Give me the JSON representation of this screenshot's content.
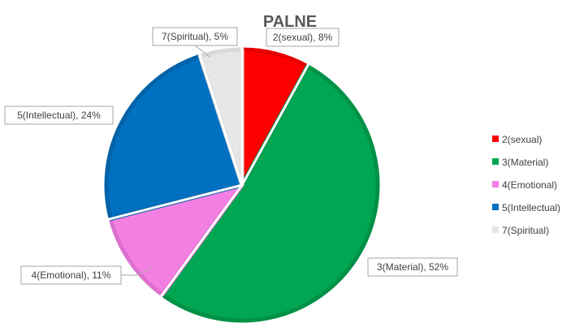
{
  "chart_data": {
    "type": "pie",
    "title": "PALNE",
    "categories": [
      "2(sexual)",
      "3(Material)",
      "4(Emotional)",
      "5(Intellectual)",
      "7(Spiritual)"
    ],
    "values": [
      8,
      52,
      11,
      24,
      5
    ],
    "colors": [
      "#ff0000",
      "#00a651",
      "#f47fe3",
      "#0070c0",
      "#e7e6e6"
    ],
    "edge_colors": [
      "#e60000",
      "#009147",
      "#dd6fce",
      "#0062a8",
      "#d9d9d9"
    ],
    "data_labels": [
      "2(sexual), 8%",
      "3(Material), 52%",
      "4(Emotional), 11%",
      "5(Intellectual), 24%",
      "7(Spiritual), 5%"
    ],
    "legend_position": "right"
  }
}
